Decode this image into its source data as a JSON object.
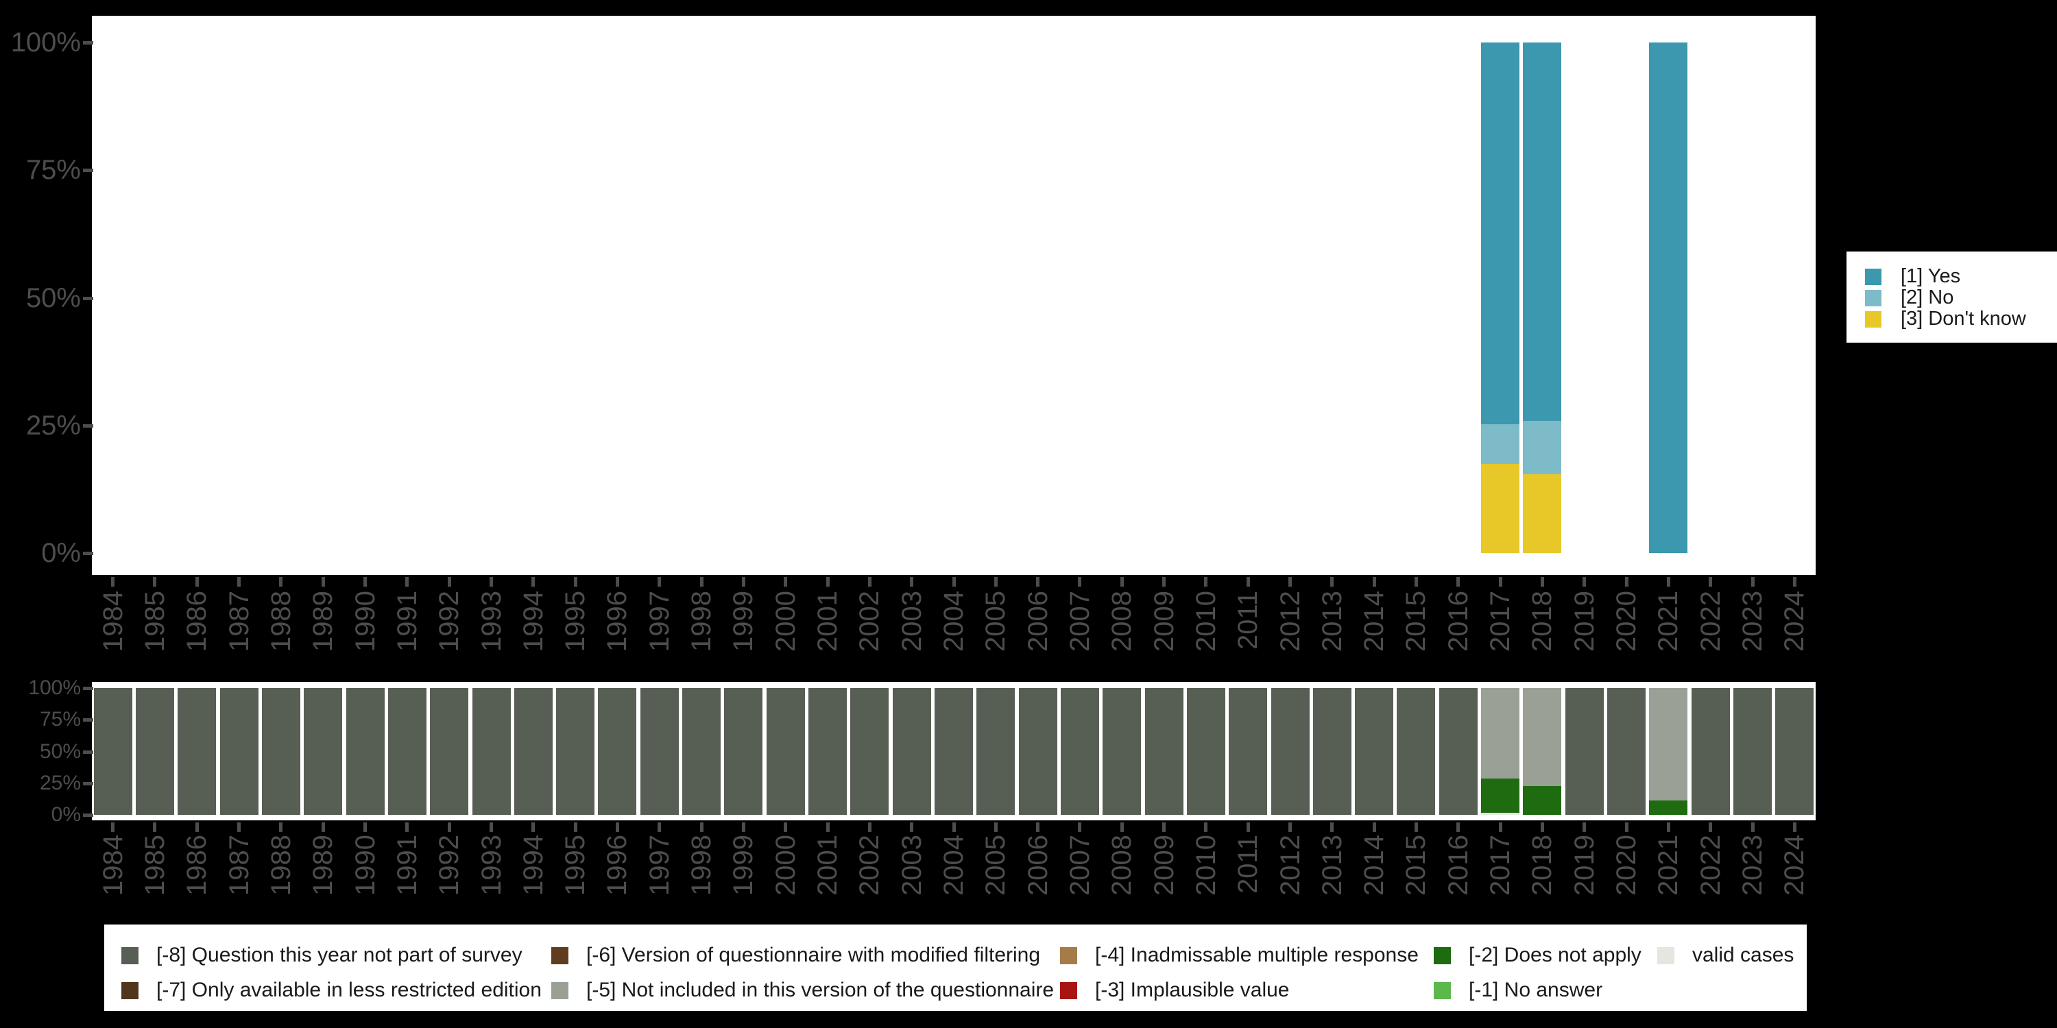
{
  "background_color": "#000000",
  "plot_background": "#ffffff",
  "axis": {
    "tick_color": "#4d4d4d",
    "label_color": "#4d4d4d"
  },
  "chart_data": [
    {
      "id": "answers",
      "type": "bar",
      "stacked": true,
      "unit": "%",
      "title": "",
      "xlabel": "",
      "ylabel": "",
      "ylim": [
        0,
        100
      ],
      "grid": false,
      "legend_position": "right",
      "categories": [
        "1984",
        "1985",
        "1986",
        "1987",
        "1988",
        "1989",
        "1990",
        "1991",
        "1992",
        "1993",
        "1994",
        "1995",
        "1996",
        "1997",
        "1998",
        "1999",
        "2000",
        "2001",
        "2002",
        "2003",
        "2004",
        "2005",
        "2006",
        "2007",
        "2008",
        "2009",
        "2010",
        "2011",
        "2012",
        "2013",
        "2014",
        "2015",
        "2016",
        "2017",
        "2018",
        "2019",
        "2020",
        "2021",
        "2022",
        "2023",
        "2024"
      ],
      "yticks": [
        {
          "pct": 0,
          "label": "0%"
        },
        {
          "pct": 25,
          "label": "25%"
        },
        {
          "pct": 50,
          "label": "50%"
        },
        {
          "pct": 75,
          "label": "75%"
        },
        {
          "pct": 100,
          "label": "100%"
        }
      ],
      "series_bottom_to_top": [
        {
          "name": "[3] Don't know",
          "color": "#e8c829",
          "values": {
            "2017": 17.4,
            "2018": 15.4
          }
        },
        {
          "name": "[2] No",
          "color": "#7dbbc9",
          "values": {
            "2017": 7.8,
            "2018": 10.5
          }
        },
        {
          "name": "[1] Yes",
          "color": "#3b98ae",
          "values": {
            "2017": 74.8,
            "2018": 74.1,
            "2021": 100
          }
        }
      ]
    },
    {
      "id": "missings",
      "type": "bar",
      "stacked": true,
      "unit": "%",
      "title": "",
      "xlabel": "",
      "ylabel": "",
      "ylim": [
        0,
        100
      ],
      "grid": false,
      "legend_position": "bottom",
      "categories": [
        "1984",
        "1985",
        "1986",
        "1987",
        "1988",
        "1989",
        "1990",
        "1991",
        "1992",
        "1993",
        "1994",
        "1995",
        "1996",
        "1997",
        "1998",
        "1999",
        "2000",
        "2001",
        "2002",
        "2003",
        "2004",
        "2005",
        "2006",
        "2007",
        "2008",
        "2009",
        "2010",
        "2011",
        "2012",
        "2013",
        "2014",
        "2015",
        "2016",
        "2017",
        "2018",
        "2019",
        "2020",
        "2021",
        "2022",
        "2023",
        "2024"
      ],
      "yticks": [
        {
          "pct": 0,
          "label": "0%"
        },
        {
          "pct": 25,
          "label": "25%"
        },
        {
          "pct": 50,
          "label": "50%"
        },
        {
          "pct": 75,
          "label": "75%"
        },
        {
          "pct": 100,
          "label": "100%"
        }
      ],
      "series_bottom_to_top": [
        {
          "name": "valid cases",
          "color": "#e3e7df",
          "values": {
            "2017": 1.5
          }
        },
        {
          "name": "[-2] Does not apply",
          "color": "#1e6b10",
          "values": {
            "2017": 27,
            "2018": 22.5,
            "2021": 11.5
          }
        },
        {
          "name": "[-5] Not included in this version of the questionnaire",
          "color": "#9aa096",
          "values": {
            "2017": 71.5,
            "2018": 77.5,
            "2021": 88.5
          }
        },
        {
          "name": "[-8] Question this year not part of survey",
          "color": "#575e53",
          "values": {
            "default": 100,
            "2017": 0,
            "2018": 0,
            "2021": 0
          }
        }
      ]
    }
  ],
  "top_legend": {
    "items": [
      {
        "label": "[1] Yes",
        "color": "#3b98ae"
      },
      {
        "label": "[2] No",
        "color": "#7dbbc9"
      },
      {
        "label": "[3] Don't know",
        "color": "#e8c829"
      }
    ]
  },
  "bottom_legend": {
    "items": [
      {
        "label": "[-8] Question this year not part of survey",
        "color": "#575e53",
        "col": 0,
        "row": 0
      },
      {
        "label": "[-7] Only available in less restricted edition",
        "color": "#50361c",
        "col": 0,
        "row": 1
      },
      {
        "label": "[-6] Version of questionnaire with modified filtering",
        "color": "#5f3d1e",
        "col": 1,
        "row": 0
      },
      {
        "label": "[-5] Not included in this version of the questionnaire",
        "color": "#9aa096",
        "col": 1,
        "row": 1
      },
      {
        "label": "[-4] Inadmissable multiple response",
        "color": "#a57c48",
        "col": 2,
        "row": 0
      },
      {
        "label": "[-3] Implausible value",
        "color": "#a81412",
        "col": 2,
        "row": 1
      },
      {
        "label": "[-2] Does not apply",
        "color": "#1e6b10",
        "col": 3,
        "row": 0
      },
      {
        "label": "[-1] No answer",
        "color": "#5cb84b",
        "col": 3,
        "row": 1
      },
      {
        "label": "valid cases",
        "color": "#e3e7df",
        "col": 4,
        "row": 0
      }
    ]
  }
}
